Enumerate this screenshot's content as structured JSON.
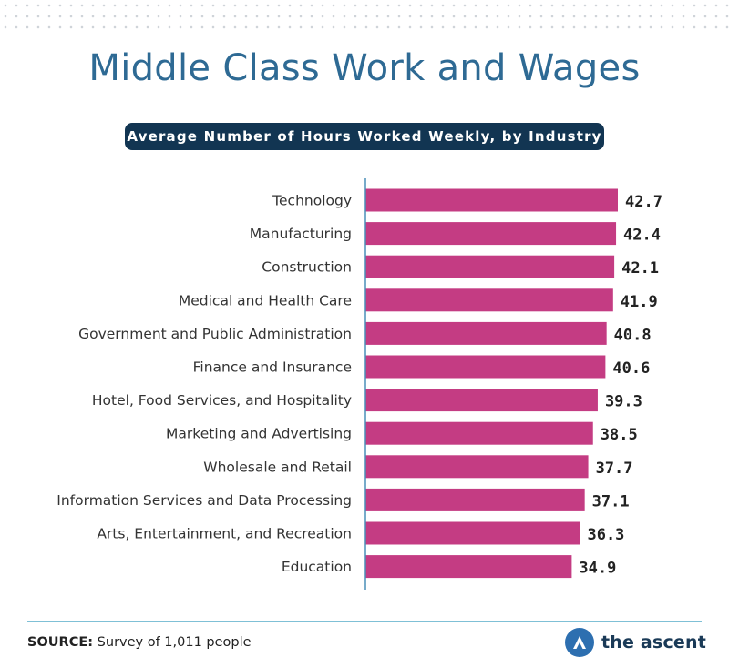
{
  "title": "Middle Class Work and Wages",
  "subtitle": "Average Number of Hours Worked Weekly, by Industry",
  "source_label": "SOURCE:",
  "source_text": "Survey of 1,011 people",
  "brand": {
    "name": "the ascent",
    "logo_icon": "ascent-logo-icon"
  },
  "colors": {
    "bar": "#c43c83",
    "title": "#2e6a94",
    "subtitle_bg": "#123552",
    "axis": "#4a8fb8",
    "divider": "#7fc0d6"
  },
  "chart_data": {
    "type": "bar",
    "orientation": "horizontal",
    "title": "Average Number of Hours Worked Weekly, by Industry",
    "categories": [
      "Technology",
      "Manufacturing",
      "Construction",
      "Medical and Health Care",
      "Government and Public Administration",
      "Finance and Insurance",
      "Hotel, Food Services, and Hospitality",
      "Marketing and Advertising",
      "Wholesale and Retail",
      "Information Services and Data Processing",
      "Arts, Entertainment, and Recreation",
      "Education"
    ],
    "values": [
      42.7,
      42.4,
      42.1,
      41.9,
      40.8,
      40.6,
      39.3,
      38.5,
      37.7,
      37.1,
      36.3,
      34.9
    ],
    "value_labels": [
      "42.7",
      "42.4",
      "42.1",
      "41.9",
      "40.8",
      "40.6",
      "39.3",
      "38.5",
      "37.7",
      "37.1",
      "36.3",
      "34.9"
    ],
    "xlim": [
      0,
      42.7
    ],
    "grid": false,
    "legend": "none"
  }
}
